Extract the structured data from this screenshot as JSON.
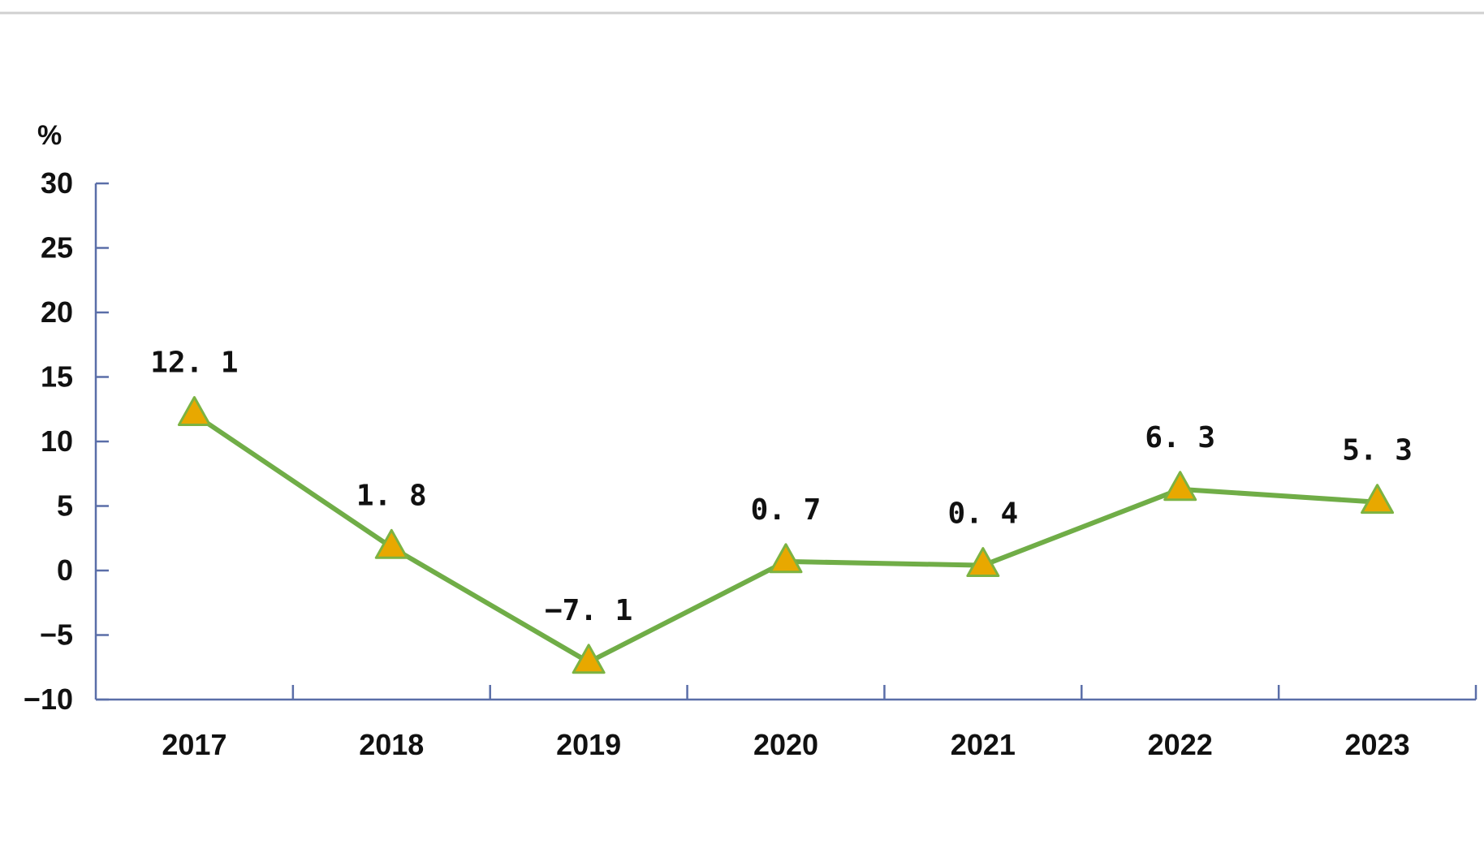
{
  "chart_data": {
    "type": "line",
    "ylabel": "%",
    "categories": [
      "2017",
      "2018",
      "2019",
      "2020",
      "2021",
      "2022",
      "2023"
    ],
    "series": [
      {
        "values": [
          12.1,
          1.8,
          -7.1,
          0.7,
          0.4,
          6.3,
          5.3
        ],
        "labels": [
          "12. 1",
          "1. 8",
          "−7. 1",
          "0. 7",
          "0. 4",
          "6. 3",
          "5. 3"
        ],
        "color": "#70ad47",
        "marker": "triangle",
        "marker_fill": "#e8a800",
        "marker_stroke": "#7cb342"
      }
    ],
    "yticks": [
      "30",
      "25",
      "20",
      "15",
      "10",
      "5",
      "0",
      "−5",
      "−10"
    ],
    "ylim": [
      -10,
      30
    ],
    "axis_color": "#5a6ea8",
    "grid": false,
    "legend": "none"
  }
}
